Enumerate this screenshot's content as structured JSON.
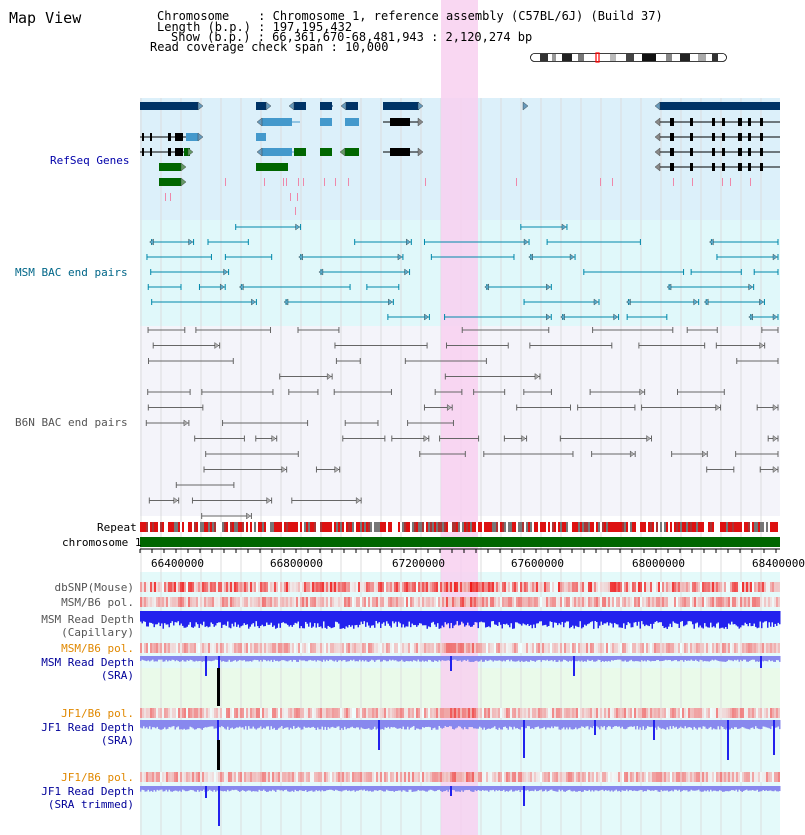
{
  "title": "Map View",
  "header": {
    "chromosome_line": "Chromosome    : Chromosome 1, reference assembly (C57BL/6J) (Build 37)",
    "length_line": "Length (b.p.) : 197,195,432",
    "show_line": "Show (b.p.) : 66,361,670-68,481,943 : 2,120,274 bp",
    "coverage_line": "Read coverage check span : 10,000"
  },
  "tracks": {
    "refseq": "RefSeq Genes",
    "msm_bac": "MSM BAC end pairs",
    "b6n_bac": "B6N BAC end pairs",
    "repeat": "Repeat",
    "chromosome": "chromosome 1",
    "dbsnp": "dbSNP(Mouse)",
    "msm_b6_pol": "MSM/B6 pol.",
    "msm_depth_cap_1": "MSM Read Depth",
    "msm_depth_cap_2": "(Capillary)",
    "msm_b6_pol2": "MSM/B6 pol.",
    "msm_depth_sra_1": "MSM Read Depth",
    "msm_depth_sra_2": "(SRA)",
    "jf1_b6_pol": "JF1/B6 pol.",
    "jf1_depth_sra_1": "JF1 Read Depth",
    "jf1_depth_sra_2": "(SRA)",
    "jf1_b6_pol2": "JF1/B6 pol.",
    "jf1_depth_trim_1": "JF1 Read Depth",
    "jf1_depth_trim_2": "(SRA trimmed)"
  },
  "axis_ticks": [
    "66400000",
    "66800000",
    "67200000",
    "67600000",
    "68000000",
    "68400000"
  ],
  "colors": {
    "refseq_bg": "#dcf0fa",
    "bac_bg": "#e0f8fa",
    "highlight": "#f8d0f0",
    "gene_dark": "#003366",
    "gene_mid": "#4499cc",
    "gene_green": "#006600",
    "msm_line": "#0088aa",
    "b6n_line": "#666666",
    "chromosome_bar": "#006600",
    "depth_blue": "#2222ee",
    "depth_light": "#8888ee"
  }
}
